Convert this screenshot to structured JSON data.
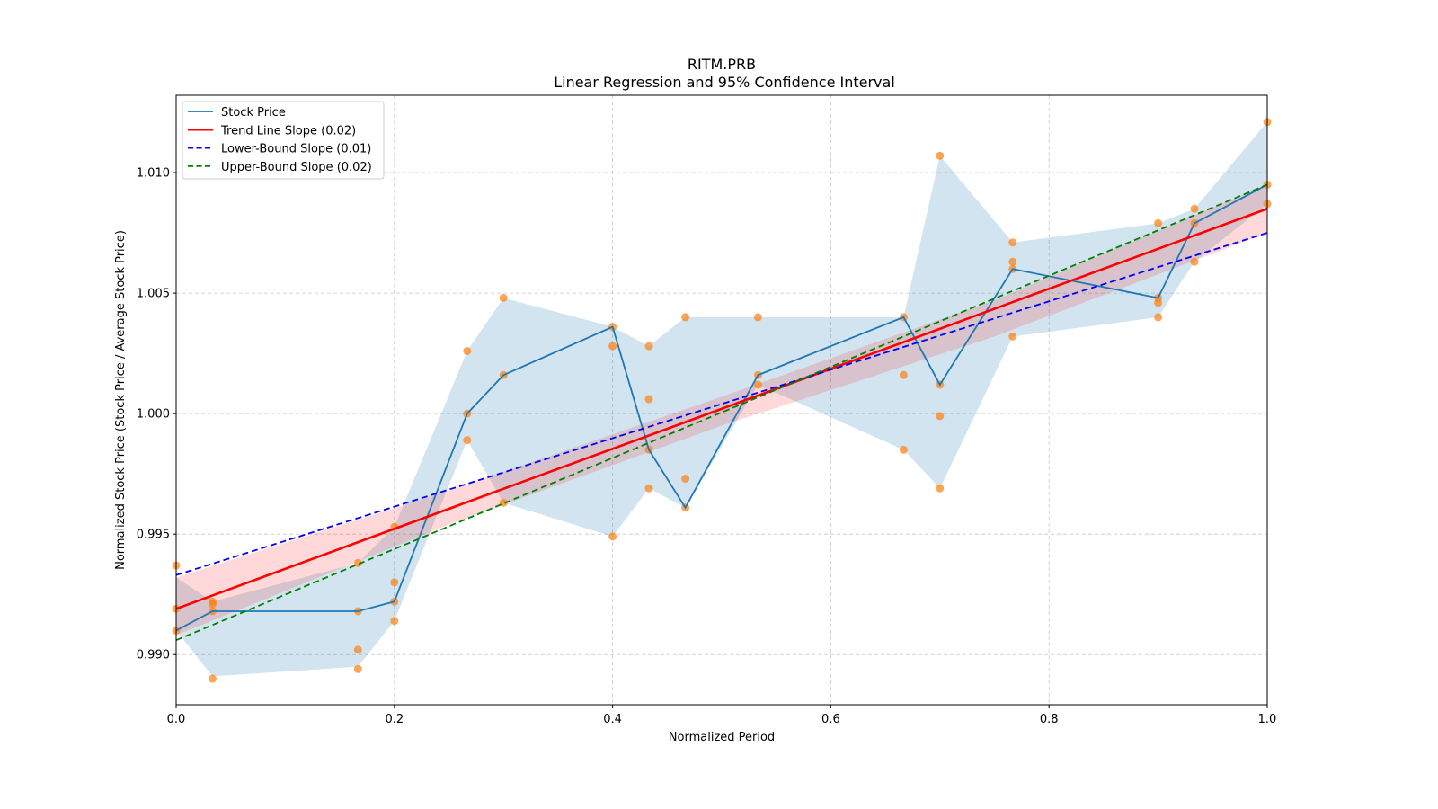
{
  "chart_data": {
    "type": "line",
    "title": "RITM.PRB",
    "subtitle": "Linear Regression and 95% Confidence Interval",
    "xlabel": "Normalized Period",
    "ylabel": "Normalized Stock Price (Stock Price / Average Stock Price)",
    "xlim": [
      0.0,
      1.0
    ],
    "ylim": [
      0.98792,
      1.01321
    ],
    "grid": true,
    "x_ticks": [
      0.0,
      0.2,
      0.4,
      0.6,
      0.8,
      1.0
    ],
    "x_tick_labels": [
      "0.0",
      "0.2",
      "0.4",
      "0.6",
      "0.8",
      "1.0"
    ],
    "y_ticks": [
      0.99,
      0.995,
      1.0,
      1.005,
      1.01
    ],
    "y_tick_labels": [
      "0.990",
      "0.995",
      "1.000",
      "1.005",
      "1.010"
    ],
    "legend_placement": "top-left",
    "legend": [
      {
        "label": "Stock Price",
        "color": "#1f77b4",
        "style": "solid"
      },
      {
        "label": "Trend Line Slope (0.02)",
        "color": "#ff0000",
        "style": "solid"
      },
      {
        "label": "Lower-Bound Slope (0.01)",
        "color": "#0000ff",
        "style": "dashed"
      },
      {
        "label": "Upper-Bound Slope (0.02)",
        "color": "#008000",
        "style": "dashed"
      }
    ],
    "stock_price": {
      "name": "Stock Price",
      "color": "#1f77b4",
      "x": [
        0.0,
        0.0333,
        0.1667,
        0.2,
        0.2667,
        0.3,
        0.4,
        0.4333,
        0.4667,
        0.5333,
        0.6667,
        0.7,
        0.7667,
        0.9,
        0.9333,
        1.0
      ],
      "y": [
        0.991,
        0.9918,
        0.9918,
        0.9922,
        1.0,
        1.0016,
        1.0036,
        0.9985,
        0.9961,
        1.0016,
        1.004,
        1.0012,
        1.006,
        1.0048,
        1.0079,
        1.0095
      ]
    },
    "envelope": {
      "color": "#1f77b4",
      "x": [
        0.0,
        0.0333,
        0.1667,
        0.2,
        0.2667,
        0.3,
        0.4,
        0.4333,
        0.4667,
        0.5333,
        0.6667,
        0.7,
        0.7667,
        0.9,
        0.9333,
        1.0
      ],
      "upper": [
        0.9932,
        0.9922,
        0.9938,
        0.9953,
        1.0026,
        1.0048,
        1.0036,
        1.0028,
        1.004,
        1.004,
        1.004,
        1.0107,
        1.0071,
        1.0079,
        1.0085,
        1.0121
      ],
      "lower": [
        0.991,
        0.9891,
        0.9895,
        0.9914,
        0.9989,
        0.9963,
        0.9949,
        0.9969,
        0.9961,
        1.0012,
        0.9985,
        0.9969,
        1.0032,
        1.004,
        1.0063,
        1.0087
      ]
    },
    "scatter": {
      "color": "#ff7f0e",
      "points": [
        [
          0.0,
          0.9937
        ],
        [
          0.0,
          0.9919
        ],
        [
          0.0,
          0.991
        ],
        [
          0.0333,
          0.9922
        ],
        [
          0.0333,
          0.9921
        ],
        [
          0.0333,
          0.9918
        ],
        [
          0.0333,
          0.989
        ],
        [
          0.1667,
          0.9938
        ],
        [
          0.1667,
          0.9918
        ],
        [
          0.1667,
          0.9902
        ],
        [
          0.1667,
          0.9894
        ],
        [
          0.2,
          0.9953
        ],
        [
          0.2,
          0.993
        ],
        [
          0.2,
          0.9922
        ],
        [
          0.2,
          0.9914
        ],
        [
          0.2667,
          1.0026
        ],
        [
          0.2667,
          1.0
        ],
        [
          0.2667,
          0.9989
        ],
        [
          0.3,
          1.0048
        ],
        [
          0.3,
          1.0016
        ],
        [
          0.3,
          0.9963
        ],
        [
          0.4,
          1.0036
        ],
        [
          0.4,
          1.0028
        ],
        [
          0.4,
          0.9949
        ],
        [
          0.4333,
          1.0028
        ],
        [
          0.4333,
          1.0006
        ],
        [
          0.4333,
          0.9985
        ],
        [
          0.4333,
          0.9969
        ],
        [
          0.4667,
          1.004
        ],
        [
          0.4667,
          0.9973
        ],
        [
          0.4667,
          0.9961
        ],
        [
          0.5333,
          1.004
        ],
        [
          0.5333,
          1.0016
        ],
        [
          0.5333,
          1.0012
        ],
        [
          0.6667,
          1.004
        ],
        [
          0.6667,
          1.0016
        ],
        [
          0.6667,
          0.9985
        ],
        [
          0.7,
          1.0107
        ],
        [
          0.7,
          1.0012
        ],
        [
          0.7,
          0.9999
        ],
        [
          0.7,
          0.9969
        ],
        [
          0.7667,
          1.0071
        ],
        [
          0.7667,
          1.0063
        ],
        [
          0.7667,
          1.006
        ],
        [
          0.7667,
          1.0032
        ],
        [
          0.9,
          1.0079
        ],
        [
          0.9,
          1.0048
        ],
        [
          0.9,
          1.0046
        ],
        [
          0.9,
          1.004
        ],
        [
          0.9333,
          1.0085
        ],
        [
          0.9333,
          1.0079
        ],
        [
          0.9333,
          1.0063
        ],
        [
          1.0,
          1.0121
        ],
        [
          1.0,
          1.0095
        ],
        [
          1.0,
          1.0087
        ]
      ]
    },
    "trend_line": {
      "name": "Trend Line Slope (0.02)",
      "color": "#ff0000",
      "x": [
        0.0,
        1.0
      ],
      "y": [
        0.9919,
        1.0085
      ]
    },
    "lower_bound_line": {
      "name": "Lower-Bound Slope (0.01)",
      "color": "#0000ff",
      "x": [
        0.0,
        1.0
      ],
      "y": [
        0.9933,
        1.0075
      ]
    },
    "upper_bound_line": {
      "name": "Upper-Bound Slope (0.02)",
      "color": "#008000",
      "x": [
        0.0,
        1.0
      ],
      "y": [
        0.9906,
        1.0095
      ]
    },
    "confidence_band": {
      "color": "#ff0000",
      "x": [
        0.0,
        0.25,
        0.5,
        0.75,
        1.0
      ],
      "upper": [
        0.9932,
        0.9968,
        1.0007,
        1.0047,
        1.0095
      ],
      "lower": [
        0.9908,
        0.9954,
        0.9995,
        1.0032,
        1.0075
      ]
    }
  }
}
